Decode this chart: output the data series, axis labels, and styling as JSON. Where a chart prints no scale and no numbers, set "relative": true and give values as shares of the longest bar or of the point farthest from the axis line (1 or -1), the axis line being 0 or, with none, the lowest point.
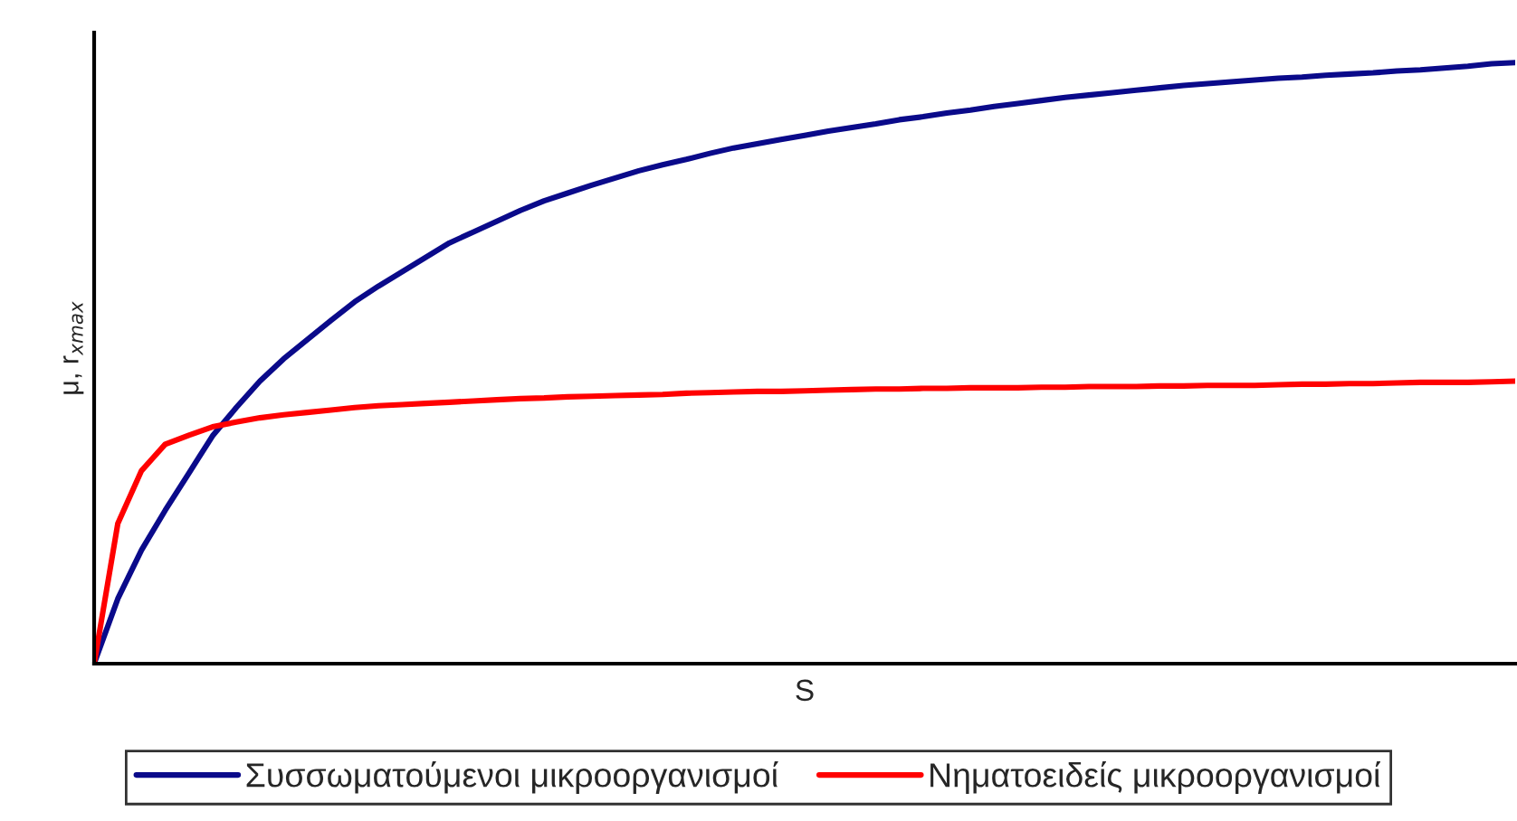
{
  "chart_data": {
    "type": "line",
    "xlabel": "S",
    "ylabel": "μ, r$_{xmax}$",
    "relative": true,
    "tick_labels": false,
    "legend": "bottom",
    "marker": "none",
    "line_style": "solid",
    "categories": [
      null,
      null,
      null,
      null,
      null,
      null,
      null,
      null,
      null,
      null,
      null,
      null,
      null,
      null,
      null,
      null,
      null,
      null,
      null,
      null,
      null,
      null,
      null,
      null,
      null,
      null,
      null,
      null,
      null,
      null,
      null,
      null,
      null,
      null,
      null,
      null,
      null,
      null,
      null,
      null,
      null,
      null,
      null,
      null,
      null,
      null,
      null,
      null,
      null,
      null,
      null,
      null,
      null,
      null,
      null,
      null,
      null,
      null,
      null,
      null,
      null
    ],
    "series": [
      {
        "name": "Συσσωματούμενοι μικροοργανισμοί",
        "color": "#0a0a8a",
        "values": [
          0,
          0.108,
          0.189,
          0.255,
          0.317,
          0.379,
          0.426,
          0.47,
          0.507,
          0.539,
          0.571,
          0.602,
          0.628,
          0.652,
          0.676,
          0.7,
          0.718,
          0.736,
          0.754,
          0.77,
          0.783,
          0.796,
          0.808,
          0.82,
          0.83,
          0.839,
          0.849,
          0.858,
          0.865,
          0.872,
          0.879,
          0.886,
          0.892,
          0.898,
          0.905,
          0.91,
          0.916,
          0.921,
          0.927,
          0.932,
          0.937,
          0.942,
          0.946,
          0.95,
          0.954,
          0.958,
          0.962,
          0.965,
          0.968,
          0.971,
          0.974,
          0.976,
          0.979,
          0.981,
          0.983,
          0.986,
          0.988,
          0.991,
          0.994,
          0.998,
          1
        ]
      },
      {
        "name": "Νηματοειδείς μικροοργανισμοί",
        "color": "#ff0000",
        "values": [
          0,
          0.233,
          0.321,
          0.365,
          0.38,
          0.394,
          0.402,
          0.409,
          0.414,
          0.418,
          0.422,
          0.426,
          0.429,
          0.431,
          0.433,
          0.435,
          0.437,
          0.439,
          0.441,
          0.442,
          0.444,
          0.445,
          0.446,
          0.447,
          0.448,
          0.45,
          0.451,
          0.452,
          0.453,
          0.453,
          0.454,
          0.455,
          0.456,
          0.457,
          0.457,
          0.458,
          0.458,
          0.459,
          0.459,
          0.459,
          0.46,
          0.46,
          0.461,
          0.461,
          0.461,
          0.462,
          0.462,
          0.463,
          0.463,
          0.463,
          0.464,
          0.465,
          0.465,
          0.466,
          0.466,
          0.467,
          0.468,
          0.468,
          0.468,
          0.469,
          0.47
        ]
      }
    ]
  }
}
